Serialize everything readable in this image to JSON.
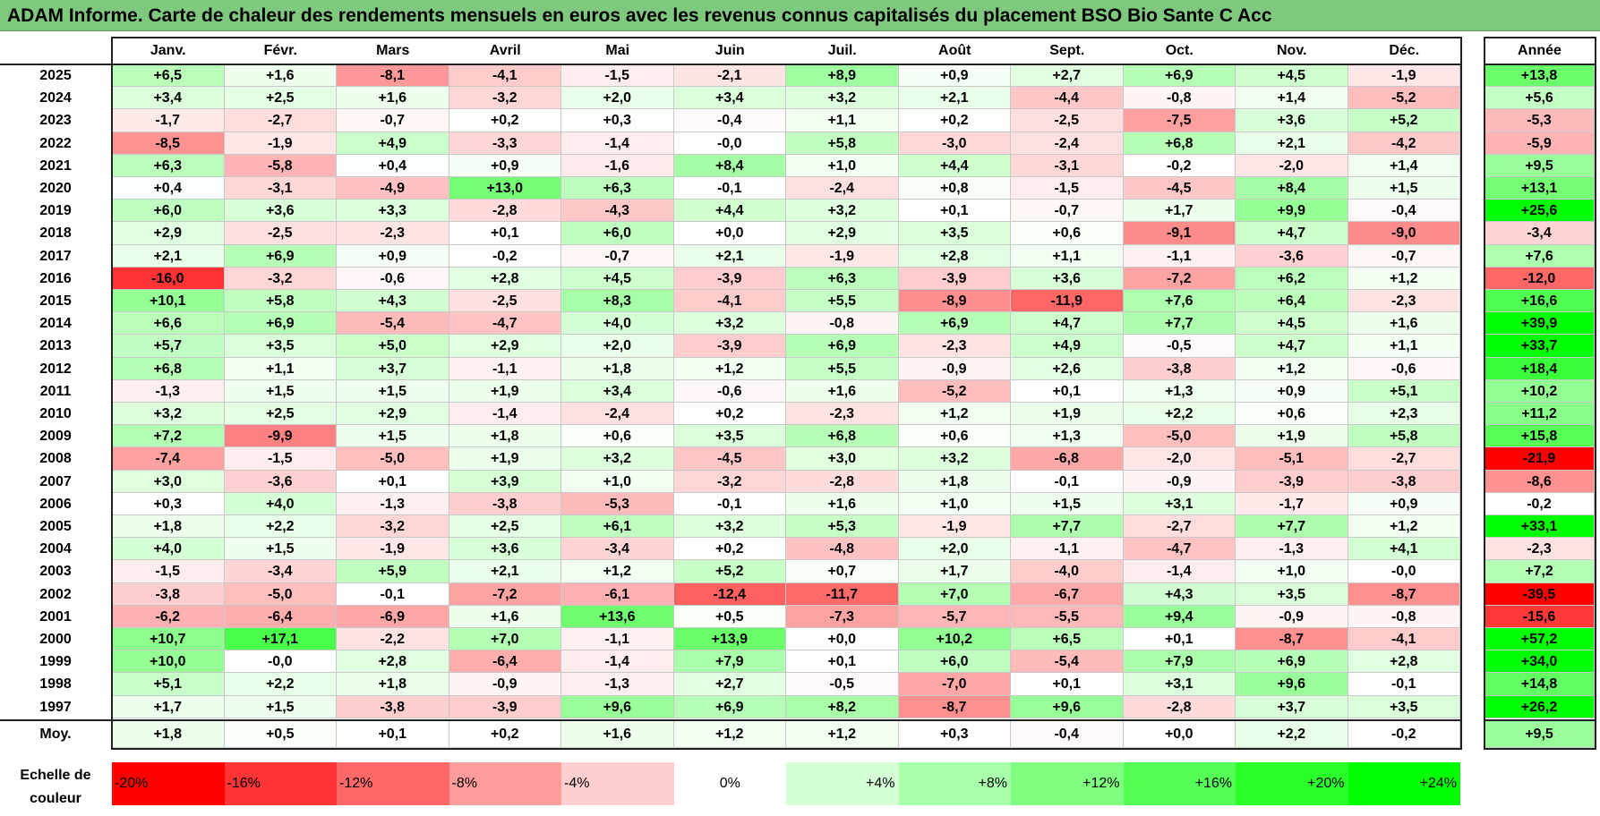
{
  "title": "ADAM Informe. Carte de chaleur des rendements mensuels en euros avec les revenus connus capitalisés du placement BSO Bio Sante C Acc",
  "chart_data": {
    "type": "heatmap",
    "columns": [
      "Janv.",
      "Févr.",
      "Mars",
      "Avril",
      "Mai",
      "Juin",
      "Juil.",
      "Août",
      "Sept.",
      "Oct.",
      "Nov.",
      "Déc."
    ],
    "year_column": "Année",
    "rows": [
      {
        "year": "2025",
        "months": [
          "+6,5",
          "+1,6",
          "-8,1",
          "-4,1",
          "-1,5",
          "-2,1",
          "+8,9",
          "+0,9",
          "+2,7",
          "+6,9",
          "+4,5",
          "-1,9"
        ],
        "annual": "+13,8"
      },
      {
        "year": "2024",
        "months": [
          "+3,4",
          "+2,5",
          "+1,6",
          "-3,2",
          "+2,0",
          "+3,4",
          "+3,2",
          "+2,1",
          "-4,4",
          "-0,8",
          "+1,4",
          "-5,2"
        ],
        "annual": "+5,6"
      },
      {
        "year": "2023",
        "months": [
          "-1,7",
          "-2,7",
          "-0,7",
          "+0,2",
          "+0,3",
          "-0,4",
          "+1,1",
          "+0,2",
          "-2,5",
          "-7,5",
          "+3,6",
          "+5,2"
        ],
        "annual": "-5,3"
      },
      {
        "year": "2022",
        "months": [
          "-8,5",
          "-1,9",
          "+4,9",
          "-3,3",
          "-1,4",
          "-0,0",
          "+5,8",
          "-3,0",
          "-2,4",
          "+6,8",
          "+2,1",
          "-4,2"
        ],
        "annual": "-5,9"
      },
      {
        "year": "2021",
        "months": [
          "+6,3",
          "-5,8",
          "+0,4",
          "+0,9",
          "-1,6",
          "+8,4",
          "+1,0",
          "+4,4",
          "-3,1",
          "-0,2",
          "-2,0",
          "+1,4"
        ],
        "annual": "+9,5"
      },
      {
        "year": "2020",
        "months": [
          "+0,4",
          "-3,1",
          "-4,9",
          "+13,0",
          "+6,3",
          "-0,1",
          "-2,4",
          "+0,8",
          "-1,5",
          "-4,5",
          "+8,4",
          "+1,5"
        ],
        "annual": "+13,1"
      },
      {
        "year": "2019",
        "months": [
          "+6,0",
          "+3,6",
          "+3,3",
          "-2,8",
          "-4,3",
          "+4,4",
          "+3,2",
          "+0,1",
          "-0,7",
          "+1,7",
          "+9,9",
          "-0,4"
        ],
        "annual": "+25,6"
      },
      {
        "year": "2018",
        "months": [
          "+2,9",
          "-2,5",
          "-2,3",
          "+0,1",
          "+6,0",
          "+0,0",
          "+2,9",
          "+3,5",
          "+0,6",
          "-9,1",
          "+4,7",
          "-9,0"
        ],
        "annual": "-3,4"
      },
      {
        "year": "2017",
        "months": [
          "+2,1",
          "+6,9",
          "+0,9",
          "-0,2",
          "-0,7",
          "+2,1",
          "-1,9",
          "+2,8",
          "+1,1",
          "-1,1",
          "-3,6",
          "-0,7"
        ],
        "annual": "+7,6"
      },
      {
        "year": "2016",
        "months": [
          "-16,0",
          "-3,2",
          "-0,6",
          "+2,8",
          "+4,5",
          "-3,9",
          "+6,3",
          "-3,9",
          "+3,6",
          "-7,2",
          "+6,2",
          "+1,2"
        ],
        "annual": "-12,0"
      },
      {
        "year": "2015",
        "months": [
          "+10,1",
          "+5,8",
          "+4,3",
          "-2,5",
          "+8,3",
          "-4,1",
          "+5,5",
          "-8,9",
          "-11,9",
          "+7,6",
          "+6,4",
          "-2,3"
        ],
        "annual": "+16,6"
      },
      {
        "year": "2014",
        "months": [
          "+6,6",
          "+6,9",
          "-5,4",
          "-4,7",
          "+4,0",
          "+3,2",
          "-0,8",
          "+6,9",
          "+4,7",
          "+7,7",
          "+4,5",
          "+1,6"
        ],
        "annual": "+39,9"
      },
      {
        "year": "2013",
        "months": [
          "+5,7",
          "+3,5",
          "+5,0",
          "+2,9",
          "+2,0",
          "-3,9",
          "+6,9",
          "-2,3",
          "+4,9",
          "-0,5",
          "+4,7",
          "+1,1"
        ],
        "annual": "+33,7"
      },
      {
        "year": "2012",
        "months": [
          "+6,8",
          "+1,1",
          "+3,7",
          "-1,1",
          "+1,8",
          "+1,2",
          "+5,5",
          "-0,9",
          "+2,6",
          "-3,8",
          "+1,2",
          "-0,6"
        ],
        "annual": "+18,4"
      },
      {
        "year": "2011",
        "months": [
          "-1,3",
          "+1,5",
          "+1,5",
          "+1,9",
          "+3,4",
          "-0,6",
          "+1,6",
          "-5,2",
          "+0,1",
          "+1,3",
          "+0,9",
          "+5,1"
        ],
        "annual": "+10,2"
      },
      {
        "year": "2010",
        "months": [
          "+3,2",
          "+2,5",
          "+2,9",
          "-1,4",
          "-2,4",
          "+0,2",
          "-2,3",
          "+1,2",
          "+1,9",
          "+2,2",
          "+0,6",
          "+2,3"
        ],
        "annual": "+11,2"
      },
      {
        "year": "2009",
        "months": [
          "+7,2",
          "-9,9",
          "+1,5",
          "+1,8",
          "+0,6",
          "+3,5",
          "+6,8",
          "+0,6",
          "+1,3",
          "-5,0",
          "+1,9",
          "+5,8"
        ],
        "annual": "+15,8"
      },
      {
        "year": "2008",
        "months": [
          "-7,4",
          "-1,5",
          "-5,0",
          "+1,9",
          "+3,2",
          "-4,5",
          "+3,0",
          "+3,2",
          "-6,8",
          "-2,0",
          "-5,1",
          "-2,7"
        ],
        "annual": "-21,9"
      },
      {
        "year": "2007",
        "months": [
          "+3,0",
          "-3,6",
          "+0,1",
          "+3,9",
          "+1,0",
          "-3,2",
          "-2,8",
          "+1,8",
          "-0,1",
          "-0,9",
          "-3,9",
          "-3,8"
        ],
        "annual": "-8,6"
      },
      {
        "year": "2006",
        "months": [
          "+0,3",
          "+4,0",
          "-1,3",
          "-3,8",
          "-5,3",
          "-0,1",
          "+1,6",
          "+1,0",
          "+1,5",
          "+3,1",
          "-1,7",
          "+0,9"
        ],
        "annual": "-0,2"
      },
      {
        "year": "2005",
        "months": [
          "+1,8",
          "+2,2",
          "-3,2",
          "+2,5",
          "+6,1",
          "+3,2",
          "+5,3",
          "-1,9",
          "+7,7",
          "-2,7",
          "+7,7",
          "+1,2"
        ],
        "annual": "+33,1"
      },
      {
        "year": "2004",
        "months": [
          "+4,0",
          "+1,5",
          "-1,9",
          "+3,6",
          "-3,4",
          "+0,2",
          "-4,8",
          "+2,0",
          "-1,1",
          "-4,7",
          "-1,3",
          "+4,1"
        ],
        "annual": "-2,3"
      },
      {
        "year": "2003",
        "months": [
          "-1,5",
          "-3,4",
          "+5,9",
          "+2,1",
          "+1,2",
          "+5,2",
          "+0,7",
          "+1,7",
          "-4,0",
          "-1,4",
          "+1,0",
          "-0,0"
        ],
        "annual": "+7,2"
      },
      {
        "year": "2002",
        "months": [
          "-3,8",
          "-5,0",
          "-0,1",
          "-7,2",
          "-6,1",
          "-12,4",
          "-11,7",
          "+7,0",
          "-6,7",
          "+4,3",
          "+3,5",
          "-8,7"
        ],
        "annual": "-39,5"
      },
      {
        "year": "2001",
        "months": [
          "-6,2",
          "-6,4",
          "-6,9",
          "+1,6",
          "+13,6",
          "+0,5",
          "-7,3",
          "-5,7",
          "-5,5",
          "+9,4",
          "-0,9",
          "-0,8"
        ],
        "annual": "-15,6"
      },
      {
        "year": "2000",
        "months": [
          "+10,7",
          "+17,1",
          "-2,2",
          "+7,0",
          "-1,1",
          "+13,9",
          "+0,0",
          "+10,2",
          "+6,5",
          "+0,1",
          "-8,7",
          "-4,1"
        ],
        "annual": "+57,2"
      },
      {
        "year": "1999",
        "months": [
          "+10,0",
          "-0,0",
          "+2,8",
          "-6,4",
          "-1,4",
          "+7,9",
          "+0,1",
          "+6,0",
          "-5,4",
          "+7,9",
          "+6,9",
          "+2,8"
        ],
        "annual": "+34,0"
      },
      {
        "year": "1998",
        "months": [
          "+5,1",
          "+2,2",
          "+1,8",
          "-0,9",
          "-1,3",
          "+2,7",
          "-0,5",
          "-7,0",
          "+0,1",
          "+3,1",
          "+9,6",
          "-0,1"
        ],
        "annual": "+14,8"
      },
      {
        "year": "1997",
        "months": [
          "+1,7",
          "+1,5",
          "-3,8",
          "-3,9",
          "+9,6",
          "+6,9",
          "+8,2",
          "-8,7",
          "+9,6",
          "-2,8",
          "+3,7",
          "+3,5"
        ],
        "annual": "+26,2"
      }
    ],
    "average": {
      "label": "Moy.",
      "months": [
        "+1,8",
        "+0,5",
        "+0,1",
        "+0,2",
        "+1,6",
        "+1,2",
        "+1,2",
        "+0,3",
        "-0,4",
        "+0,0",
        "+2,2",
        "-0,2"
      ],
      "annual": "+9,5"
    },
    "scale": {
      "label": "Echelle de couleur",
      "steps": [
        {
          "text": "-20%",
          "value": -20,
          "color": "#ff0000"
        },
        {
          "text": "-16%",
          "value": -16,
          "color": "#ff3434"
        },
        {
          "text": "-12%",
          "value": -12,
          "color": "#ff6868"
        },
        {
          "text": "-8%",
          "value": -8,
          "color": "#ff9c9c"
        },
        {
          "text": "-4%",
          "value": -4,
          "color": "#ffcfcf"
        },
        {
          "text": "0%",
          "value": 0,
          "color": "#ffffff"
        },
        {
          "text": "+4%",
          "value": 4,
          "color": "#d5ffd5"
        },
        {
          "text": "+8%",
          "value": 8,
          "color": "#aaffaa"
        },
        {
          "text": "+12%",
          "value": 12,
          "color": "#80ff80"
        },
        {
          "text": "+16%",
          "value": 16,
          "color": "#55ff55"
        },
        {
          "text": "+20%",
          "value": 20,
          "color": "#2bff2b"
        },
        {
          "text": "+24%",
          "value": 24,
          "color": "#00ff00"
        }
      ]
    },
    "colors": {
      "negative_extreme": "#ff0000",
      "zero": "#ffffff",
      "positive_extreme": "#00ff00",
      "title_bar": "#7fc97f"
    }
  }
}
